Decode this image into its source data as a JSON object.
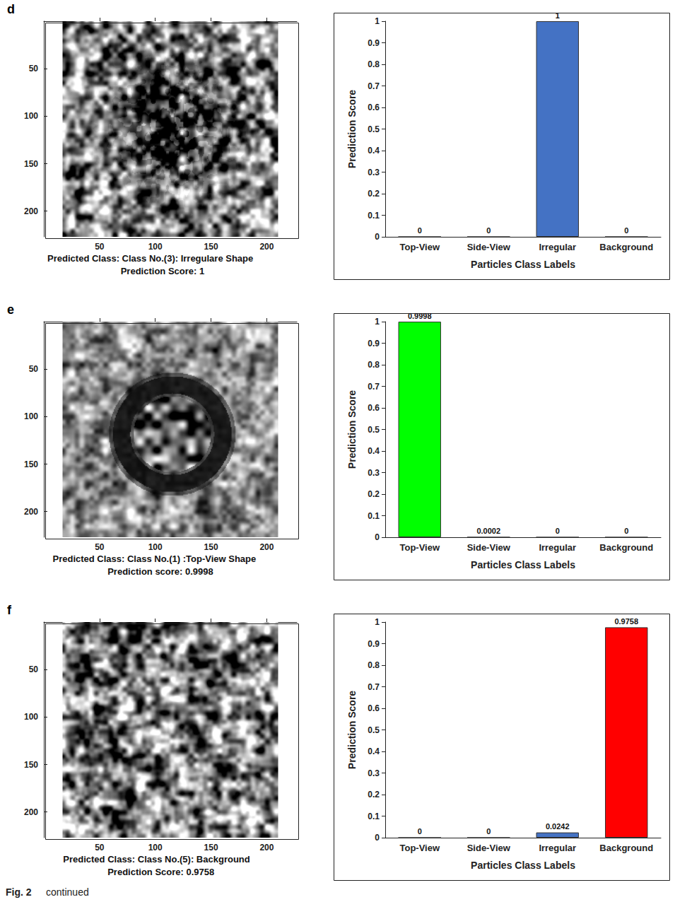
{
  "chart_data": [
    {
      "type": "image",
      "panel": "d",
      "xlim": [
        0,
        227
      ],
      "ylim": [
        0,
        227
      ],
      "xticks": [
        50,
        100,
        150,
        200
      ],
      "yticks": [
        50,
        100,
        150,
        200
      ],
      "caption": [
        "Predicted Class: Class No.(3): Irregulare Shape",
        "Prediction Score: 1"
      ]
    },
    {
      "type": "bar",
      "categories": [
        "Top-View",
        "Side-View",
        "Irregular",
        "Background"
      ],
      "values": [
        0,
        0,
        1,
        0
      ],
      "colors": [
        "#4472c4",
        "#4472c4",
        "#4472c4",
        "#4472c4"
      ],
      "ylim": [
        0,
        1
      ],
      "yticks": [
        0,
        0.1,
        0.2,
        0.3,
        0.4,
        0.5,
        0.6,
        0.7,
        0.8,
        0.9,
        1
      ],
      "xlabel": "Particles Class Labels",
      "ylabel": "Prediction Score",
      "data_labels": true
    },
    {
      "type": "image",
      "panel": "e",
      "xlim": [
        0,
        227
      ],
      "ylim": [
        0,
        227
      ],
      "xticks": [
        50,
        100,
        150,
        200
      ],
      "yticks": [
        50,
        100,
        150,
        200
      ],
      "caption": [
        "Predicted Class: Class No.(1) :Top-View Shape",
        "Prediction score: 0.9998"
      ]
    },
    {
      "type": "bar",
      "categories": [
        "Top-View",
        "Side-View",
        "Irregular",
        "Background"
      ],
      "values": [
        0.9998,
        0.0002,
        0,
        0
      ],
      "colors": [
        "#00ff00",
        "#00ff00",
        "#4472c4",
        "#ff0000"
      ],
      "ylim": [
        0,
        1
      ],
      "yticks": [
        0,
        0.1,
        0.2,
        0.3,
        0.4,
        0.5,
        0.6,
        0.7,
        0.8,
        0.9,
        1
      ],
      "xlabel": "Particles Class Labels",
      "ylabel": "Prediction Score",
      "data_labels": true
    },
    {
      "type": "image",
      "panel": "f",
      "xlim": [
        0,
        227
      ],
      "ylim": [
        0,
        227
      ],
      "xticks": [
        50,
        100,
        150,
        200
      ],
      "yticks": [
        50,
        100,
        150,
        200
      ],
      "caption": [
        "Predicted Class: Class No.(5): Background",
        "Prediction Score: 0.9758"
      ]
    },
    {
      "type": "bar",
      "categories": [
        "Top-View",
        "Side-View",
        "Irregular",
        "Background"
      ],
      "values": [
        0,
        0,
        0.0242,
        0.9758
      ],
      "colors": [
        "#ff0000",
        "#ff0000",
        "#4472c4",
        "#ff0000"
      ],
      "ylim": [
        0,
        1
      ],
      "yticks": [
        0,
        0.1,
        0.2,
        0.3,
        0.4,
        0.5,
        0.6,
        0.7,
        0.8,
        0.9,
        1
      ],
      "xlabel": "Particles Class Labels",
      "ylabel": "Prediction Score",
      "data_labels": true
    }
  ],
  "figure_caption": {
    "label": "Fig. 2",
    "text": "continued"
  }
}
